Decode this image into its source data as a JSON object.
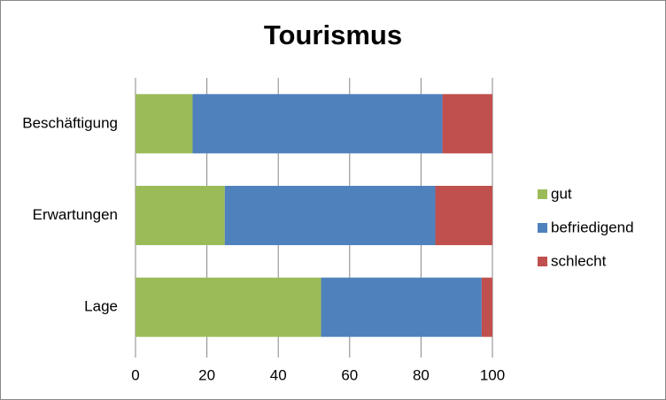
{
  "chart_data": {
    "type": "stacked-barh",
    "title": "Tourismus",
    "categories": [
      "Beschäftigung",
      "Erwartungen",
      "Lage"
    ],
    "series": [
      {
        "name": "gut",
        "color": "#9bbb59",
        "values": [
          16,
          25,
          52
        ]
      },
      {
        "name": "befriedigend",
        "color": "#4f81bd",
        "values": [
          70,
          59,
          45
        ]
      },
      {
        "name": "schlecht",
        "color": "#c0504d",
        "values": [
          14,
          16,
          3
        ]
      }
    ],
    "xlim": [
      0,
      100
    ],
    "xticks": [
      0,
      20,
      40,
      60,
      80,
      100
    ],
    "grid": true,
    "legend": "right"
  }
}
